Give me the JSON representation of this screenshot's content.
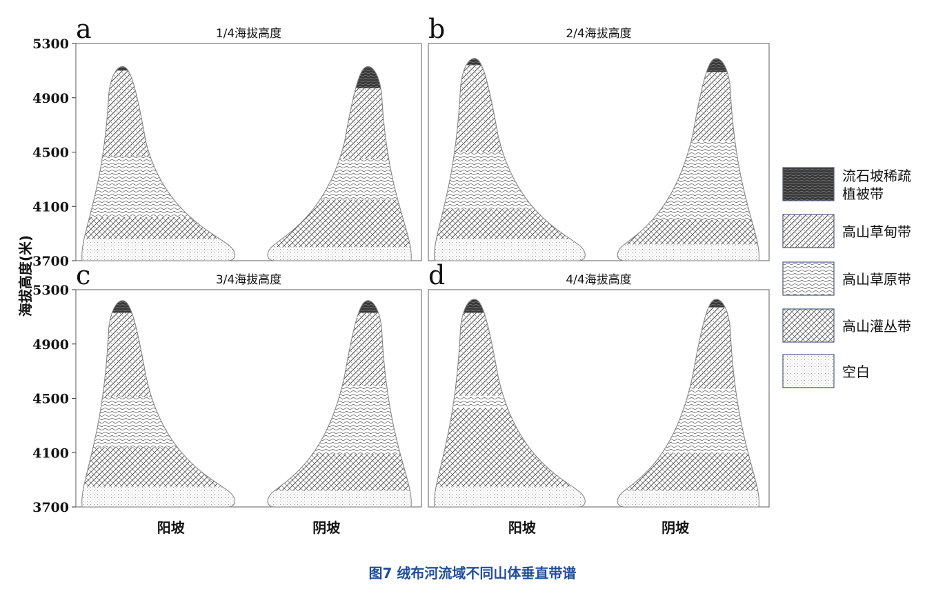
{
  "figure": {
    "caption": "图7 绒布河流域不同山体垂直带谱",
    "ylabel": "海拔高度(米)",
    "xcategories": [
      "阳坡",
      "阴坡"
    ]
  },
  "legend": [
    {
      "name": "流石坡稀疏植被带",
      "pattern": "dark",
      "icon": "dark-wave-swatch"
    },
    {
      "name": "高山草甸带",
      "pattern": "meadow",
      "icon": "diagonal-hatch-swatch"
    },
    {
      "name": "高山草原带",
      "pattern": "steppe",
      "icon": "wave-hatch-swatch"
    },
    {
      "name": "高山灌丛带",
      "pattern": "shrub",
      "icon": "cross-hatch-swatch"
    },
    {
      "name": "空白",
      "pattern": "blank",
      "icon": "dot-swatch"
    }
  ],
  "chart_data": [
    {
      "type": "area",
      "letter": "a",
      "title": "1/4海拔高度",
      "ylim": [
        3700,
        5300
      ],
      "yticks": [
        3700,
        4100,
        4500,
        4900,
        5300
      ],
      "slopes": [
        {
          "name": "阳坡",
          "peak": 5130,
          "bands": [
            {
              "from": 3700,
              "to": 3860,
              "pattern": "blank"
            },
            {
              "from": 3860,
              "to": 4020,
              "pattern": "shrub"
            },
            {
              "from": 4020,
              "to": 4470,
              "pattern": "steppe"
            },
            {
              "from": 4470,
              "to": 5100,
              "pattern": "meadow"
            },
            {
              "from": 5100,
              "to": 5130,
              "pattern": "dark"
            }
          ]
        },
        {
          "name": "阴坡",
          "peak": 5130,
          "bands": [
            {
              "from": 3700,
              "to": 3800,
              "pattern": "blank"
            },
            {
              "from": 3800,
              "to": 4150,
              "pattern": "shrub"
            },
            {
              "from": 4150,
              "to": 4450,
              "pattern": "steppe"
            },
            {
              "from": 4450,
              "to": 4970,
              "pattern": "meadow"
            },
            {
              "from": 4970,
              "to": 5130,
              "pattern": "dark"
            }
          ]
        }
      ]
    },
    {
      "type": "area",
      "letter": "b",
      "title": "2/4海拔高度",
      "ylim": [
        3700,
        5300
      ],
      "yticks": [
        3700,
        4100,
        4500,
        4900,
        5300
      ],
      "slopes": [
        {
          "name": "阳坡",
          "peak": 5190,
          "bands": [
            {
              "from": 3700,
              "to": 3860,
              "pattern": "blank"
            },
            {
              "from": 3860,
              "to": 4080,
              "pattern": "shrub"
            },
            {
              "from": 4080,
              "to": 4500,
              "pattern": "steppe"
            },
            {
              "from": 4500,
              "to": 5140,
              "pattern": "meadow"
            },
            {
              "from": 5140,
              "to": 5190,
              "pattern": "dark"
            }
          ]
        },
        {
          "name": "阴坡",
          "peak": 5190,
          "bands": [
            {
              "from": 3700,
              "to": 3820,
              "pattern": "blank"
            },
            {
              "from": 3820,
              "to": 4000,
              "pattern": "shrub"
            },
            {
              "from": 4000,
              "to": 4580,
              "pattern": "steppe"
            },
            {
              "from": 4580,
              "to": 5090,
              "pattern": "meadow"
            },
            {
              "from": 5090,
              "to": 5190,
              "pattern": "dark"
            }
          ]
        }
      ]
    },
    {
      "type": "area",
      "letter": "c",
      "title": "3/4海拔高度",
      "ylim": [
        3700,
        5300
      ],
      "yticks": [
        3700,
        4100,
        4500,
        4900,
        5300
      ],
      "slopes": [
        {
          "name": "阳坡",
          "peak": 5220,
          "bands": [
            {
              "from": 3700,
              "to": 3850,
              "pattern": "blank"
            },
            {
              "from": 3850,
              "to": 4140,
              "pattern": "shrub"
            },
            {
              "from": 4140,
              "to": 4510,
              "pattern": "steppe"
            },
            {
              "from": 4510,
              "to": 5130,
              "pattern": "meadow"
            },
            {
              "from": 5130,
              "to": 5220,
              "pattern": "dark"
            }
          ]
        },
        {
          "name": "阴坡",
          "peak": 5220,
          "bands": [
            {
              "from": 3700,
              "to": 3820,
              "pattern": "blank"
            },
            {
              "from": 3820,
              "to": 4090,
              "pattern": "shrub"
            },
            {
              "from": 4090,
              "to": 4590,
              "pattern": "steppe"
            },
            {
              "from": 4590,
              "to": 5130,
              "pattern": "meadow"
            },
            {
              "from": 5130,
              "to": 5220,
              "pattern": "dark"
            }
          ]
        }
      ]
    },
    {
      "type": "area",
      "letter": "d",
      "title": "4/4海拔高度",
      "ylim": [
        3700,
        5300
      ],
      "yticks": [
        3700,
        4100,
        4500,
        4900,
        5300
      ],
      "slopes": [
        {
          "name": "阳坡",
          "peak": 5230,
          "bands": [
            {
              "from": 3700,
              "to": 3850,
              "pattern": "blank"
            },
            {
              "from": 3850,
              "to": 4430,
              "pattern": "shrub"
            },
            {
              "from": 4430,
              "to": 4520,
              "pattern": "steppe"
            },
            {
              "from": 4520,
              "to": 5130,
              "pattern": "meadow"
            },
            {
              "from": 5130,
              "to": 5230,
              "pattern": "dark"
            }
          ]
        },
        {
          "name": "阴坡",
          "peak": 5230,
          "bands": [
            {
              "from": 3700,
              "to": 3820,
              "pattern": "blank"
            },
            {
              "from": 3820,
              "to": 4100,
              "pattern": "shrub"
            },
            {
              "from": 4100,
              "to": 4570,
              "pattern": "steppe"
            },
            {
              "from": 4570,
              "to": 5170,
              "pattern": "meadow"
            },
            {
              "from": 5170,
              "to": 5230,
              "pattern": "dark"
            }
          ]
        }
      ]
    }
  ]
}
